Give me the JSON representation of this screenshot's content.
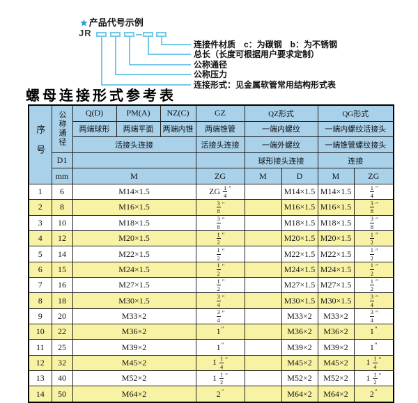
{
  "colors": {
    "header_bg": "#a9d1ea",
    "row_alt": "#f8f3a4",
    "line_blue": "#74c9e9",
    "star_blue": "#1e9cd8"
  },
  "diagram": {
    "star": "★",
    "title": "产品代号示例",
    "prefix": "JR",
    "labels": [
      "连接件材质　c：为碳钢　b：为不锈钢",
      "总长（长度可根据用户要求定制）",
      "公称通径",
      "公称压力",
      "连接形式：见金属软管常用结构形式表"
    ]
  },
  "table": {
    "title": "螺母连接形式参考表",
    "header": {
      "seq": "序号",
      "dn": "公称通径",
      "d1": "D1",
      "mm": "mm",
      "q": "Q(D)",
      "q_sub": "两端球形",
      "pm": "PM(A)",
      "pm_sub": "两端平面",
      "nz": "NZ(C)",
      "nz_sub": "两端内锥",
      "gz": "GZ",
      "gz_sub": "两端锥管",
      "qz": "QZ形式",
      "qz_sub1": "一端内螺纹",
      "qz_sub2": "一端外螺纹",
      "qz_sub3": "球形接头连接",
      "qg": "QG形式",
      "qg_sub1": "一端内螺纹活接头",
      "qg_sub2": "一端锥管螺纹接头",
      "qg_sub3": "连接",
      "union_conn": "活接头连接",
      "m": "M",
      "zg": "ZG",
      "d": "D"
    },
    "rows": [
      [
        "1",
        "6",
        "M14×1.5",
        "ZG 1/4″",
        "",
        "M14×1.5",
        "M14×1.5",
        "1/4″"
      ],
      [
        "2",
        "8",
        "M16×1.5",
        "3/8″",
        "",
        "M16×1.5",
        "M16×1.5",
        "3/8″"
      ],
      [
        "3",
        "10",
        "M18×1.5",
        "3/8″",
        "",
        "M18×1.5",
        "M18×1.5",
        "3/8″"
      ],
      [
        "4",
        "12",
        "M20×1.5",
        "1/2″",
        "",
        "M20×1.5",
        "M20×1.5",
        "1/2″"
      ],
      [
        "5",
        "14",
        "M22×1.5",
        "1/2″",
        "",
        "M22×1.5",
        "M22×1.5",
        "1/2″"
      ],
      [
        "6",
        "15",
        "M24×1.5",
        "1/2″",
        "",
        "M24×1.5",
        "M24×1.5",
        "1/2″"
      ],
      [
        "7",
        "16",
        "M27×1.5",
        "1/2″",
        "",
        "M27×1.5",
        "M27×1.5",
        "1/2″"
      ],
      [
        "8",
        "18",
        "M30×1.5",
        "3/4″",
        "",
        "M30×1.5",
        "M30×1.5",
        "3/4″"
      ],
      [
        "9",
        "20",
        "M33×2",
        "3/4″",
        "",
        "M33×2",
        "M33×2",
        "3/4″"
      ],
      [
        "10",
        "22",
        "M36×2",
        "1″",
        "",
        "M36×2",
        "M36×2",
        "1″"
      ],
      [
        "11",
        "25",
        "M39×2",
        "1″",
        "",
        "M39×2",
        "M39×2",
        "1″"
      ],
      [
        "12",
        "32",
        "M45×2",
        "1 1/4″",
        "",
        "M45×2",
        "M45×2",
        "1 1/4″"
      ],
      [
        "13",
        "40",
        "M52×2",
        "1 1/2″",
        "",
        "M52×2",
        "M52×2",
        "1 1/2″"
      ],
      [
        "14",
        "50",
        "M64×2",
        "2″",
        "",
        "M64×2",
        "M64×2",
        "2″"
      ]
    ]
  }
}
